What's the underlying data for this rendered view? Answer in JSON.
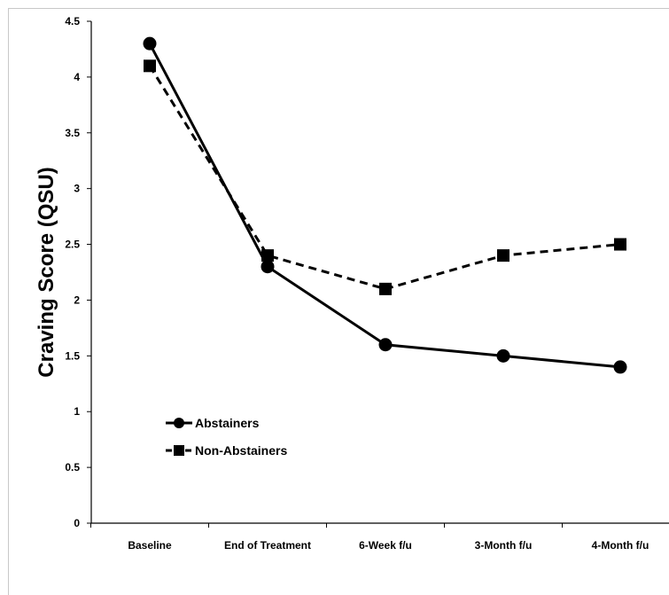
{
  "chart_data": {
    "type": "line",
    "title": "",
    "xlabel": "",
    "ylabel": "Craving Score (QSU)",
    "categories": [
      "Baseline",
      "End of Treatment",
      "6-Week f/u",
      "3-Month f/u",
      "4-Month f/u"
    ],
    "ylim": [
      0,
      4.5
    ],
    "yticks": [
      "0",
      "0.5",
      "1",
      "1.5",
      "2",
      "2.5",
      "3",
      "3.5",
      "4",
      "4.5"
    ],
    "grid": false,
    "legend_position": "bottom-left",
    "series": [
      {
        "name": "Abstainers",
        "values": [
          4.3,
          2.3,
          1.6,
          1.5,
          1.4
        ],
        "marker": "circle",
        "line_style": "solid",
        "color": "#000000"
      },
      {
        "name": "Non-Abstainers",
        "values": [
          4.1,
          2.4,
          2.1,
          2.4,
          2.5
        ],
        "marker": "square",
        "line_style": "dashed",
        "color": "#000000"
      }
    ]
  }
}
